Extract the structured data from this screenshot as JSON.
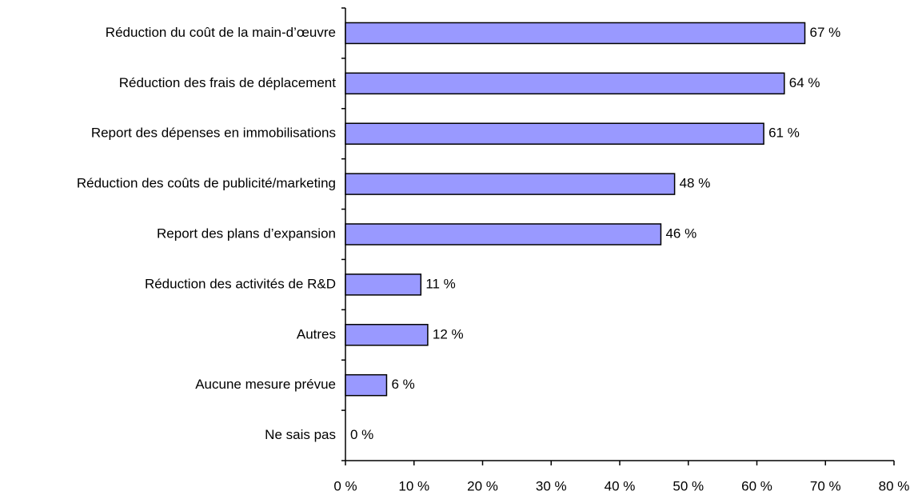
{
  "chart_data": {
    "type": "bar",
    "orientation": "horizontal",
    "categories": [
      "Réduction du coût de la main-d’œuvre",
      "Réduction des frais de déplacement",
      "Report des dépenses en immobilisations",
      "Réduction des coûts de publicité/marketing",
      "Report des plans d’expansion",
      "Réduction des activités de R&D",
      "Autres",
      "Aucune mesure prévue",
      "Ne sais pas"
    ],
    "values": [
      67,
      64,
      61,
      48,
      46,
      11,
      12,
      6,
      0
    ],
    "value_labels": [
      "67 %",
      "64 %",
      "61 %",
      "48 %",
      "46 %",
      "11 %",
      "12 %",
      "6 %",
      "0 %"
    ],
    "color": "#9999ff",
    "xlim": [
      0,
      80
    ],
    "xticks": [
      {
        "value": 0,
        "label": "0 %"
      },
      {
        "value": 10,
        "label": "10 %"
      },
      {
        "value": 20,
        "label": "20 %"
      },
      {
        "value": 30,
        "label": "30 %"
      },
      {
        "value": 40,
        "label": "40 %"
      },
      {
        "value": 50,
        "label": "50 %"
      },
      {
        "value": 60,
        "label": "60 %"
      },
      {
        "value": 70,
        "label": "70 %"
      },
      {
        "value": 80,
        "label": "80 %"
      }
    ],
    "grid": false
  }
}
